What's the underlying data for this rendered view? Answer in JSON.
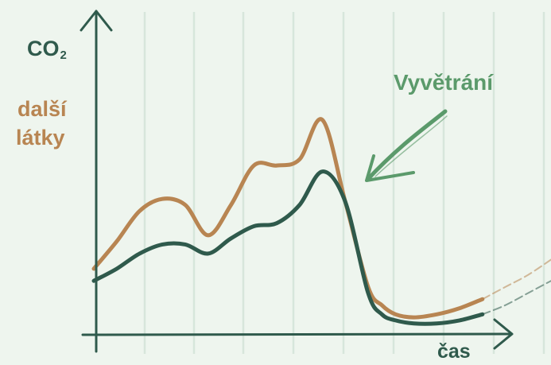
{
  "colors": {
    "background": "#eef5ee",
    "grid": "#d7e6db",
    "axis": "#2f5a4c",
    "co2_series": "#2f5a4c",
    "other_series": "#b88552",
    "annotation": "#5b9a6b"
  },
  "labels": {
    "y_co2_main": "CO",
    "y_co2_sub": "2",
    "y_other_line1": "další",
    "y_other_line2": "látky",
    "annotation": "Vyvětrání",
    "x_axis": "čas"
  },
  "chart_data": {
    "type": "line",
    "title": "",
    "xlabel": "čas",
    "ylabel": "CO₂ / další látky",
    "grid": true,
    "legend": "none",
    "ticks_shown": false,
    "note": "qualitative sketch: values in relative units, axes unscaled",
    "xlim": [
      0,
      10
    ],
    "ylim": [
      0,
      100
    ],
    "x": [
      0,
      0.5,
      1,
      1.5,
      2,
      2.5,
      3,
      3.5,
      4,
      4.5,
      5,
      5.5,
      6,
      6.3,
      6.6,
      7,
      7.5,
      8,
      8.5,
      9,
      9.5,
      10
    ],
    "series": [
      {
        "name": "CO₂",
        "color": "#2f5a4c",
        "values": [
          18,
          22,
          27,
          30,
          30,
          27,
          32,
          36,
          37,
          43,
          54,
          44,
          14,
          7,
          5,
          4,
          4,
          5,
          7,
          10,
          14,
          18
        ],
        "faded_from_index": 18
      },
      {
        "name": "další látky",
        "color": "#b88552",
        "values": [
          22,
          31,
          41,
          45,
          43,
          33,
          43,
          56,
          56,
          58,
          71,
          44,
          16,
          10,
          7,
          6,
          7,
          9,
          12,
          16,
          20,
          25
        ],
        "faded_from_index": 18
      }
    ],
    "annotations": [
      {
        "text": "Vyvětrání",
        "points_to_x": 5.7
      }
    ]
  }
}
